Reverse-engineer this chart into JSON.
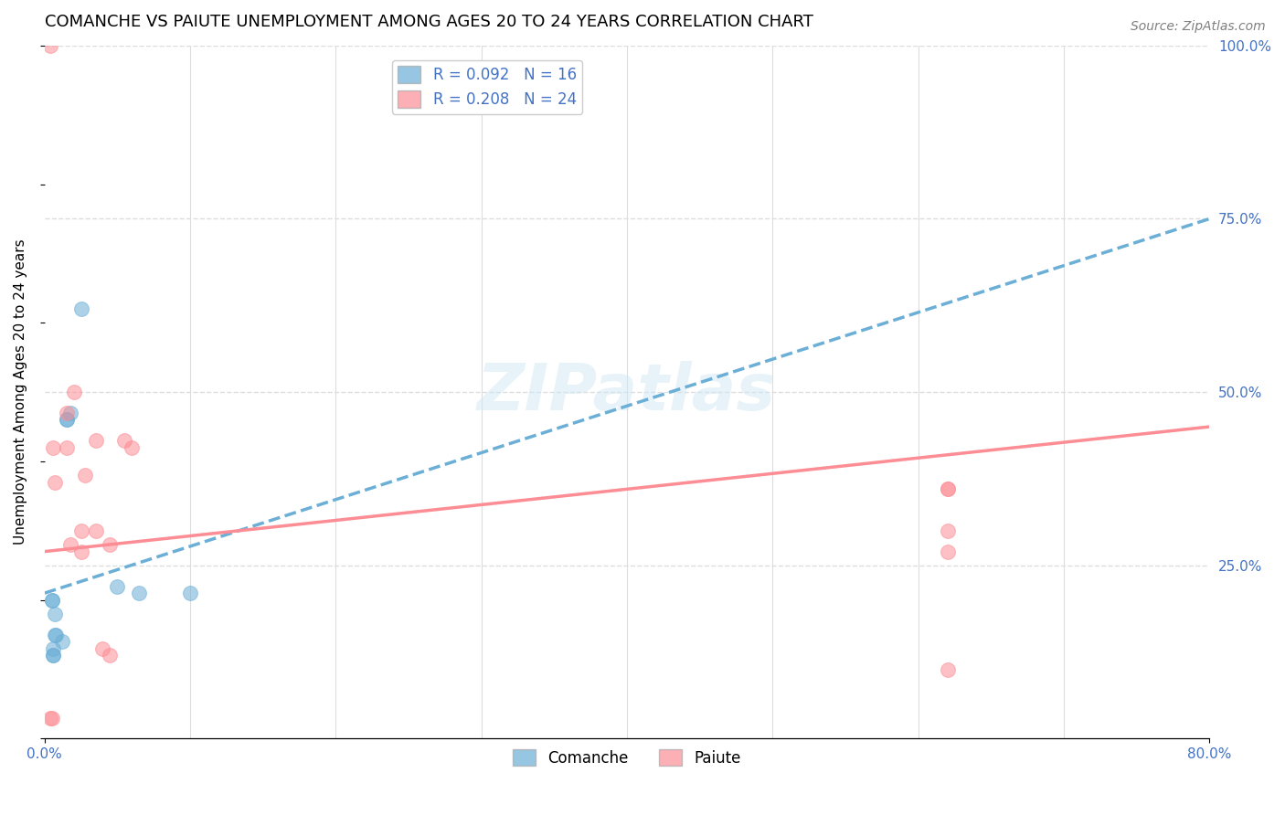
{
  "title": "COMANCHE VS PAIUTE UNEMPLOYMENT AMONG AGES 20 TO 24 YEARS CORRELATION CHART",
  "source": "Source: ZipAtlas.com",
  "ylabel": "Unemployment Among Ages 20 to 24 years",
  "legend_label1": "R = 0.092   N = 16",
  "legend_label2": "R = 0.208   N = 24",
  "legend_bottom": [
    "Comanche",
    "Paiute"
  ],
  "comanche_color": "#6baed6",
  "paiute_color": "#fc8d94",
  "comanche_scatter_x": [
    2.5,
    1.5,
    1.5,
    0.5,
    0.5,
    0.7,
    0.7,
    0.8,
    1.2,
    0.6,
    0.6,
    0.6,
    1.8,
    5.0,
    6.5,
    10.0
  ],
  "comanche_scatter_y": [
    62,
    46,
    46,
    20,
    20,
    18,
    15,
    15,
    14,
    13,
    12,
    12,
    47,
    22,
    21,
    21
  ],
  "paiute_scatter_x": [
    0.4,
    0.4,
    0.5,
    0.6,
    0.7,
    1.5,
    1.5,
    1.8,
    2.0,
    2.5,
    2.5,
    2.8,
    3.5,
    3.5,
    4.0,
    5.5,
    6.0,
    4.5,
    4.5,
    62,
    62,
    62,
    62,
    62
  ],
  "paiute_scatter_y": [
    100,
    3,
    3,
    42,
    37,
    47,
    42,
    28,
    50,
    30,
    27,
    38,
    43,
    30,
    13,
    43,
    42,
    28,
    12,
    36,
    27,
    36,
    30,
    10
  ],
  "comanche_trend_x": [
    0,
    80
  ],
  "comanche_trend_y": [
    21,
    75
  ],
  "paiute_trend_x": [
    0,
    80
  ],
  "paiute_trend_y": [
    27,
    45
  ],
  "xlim": [
    0,
    80
  ],
  "ylim": [
    0,
    100
  ],
  "xticks": [
    0,
    80
  ],
  "xticklabels": [
    "0.0%",
    "80.0%"
  ],
  "yticks_right": [
    25,
    50,
    75,
    100
  ],
  "yticklabels_right": [
    "25.0%",
    "50.0%",
    "75.0%",
    "100.0%"
  ],
  "background_color": "#ffffff",
  "grid_color": "#dddddd",
  "title_fontsize": 13,
  "source_fontsize": 10,
  "axis_label_fontsize": 11,
  "tick_fontsize": 11,
  "legend_fontsize": 12,
  "marker_size": 130,
  "marker_alpha": 0.55,
  "trend_linewidth": 2.5,
  "tick_color": "#4472c4"
}
